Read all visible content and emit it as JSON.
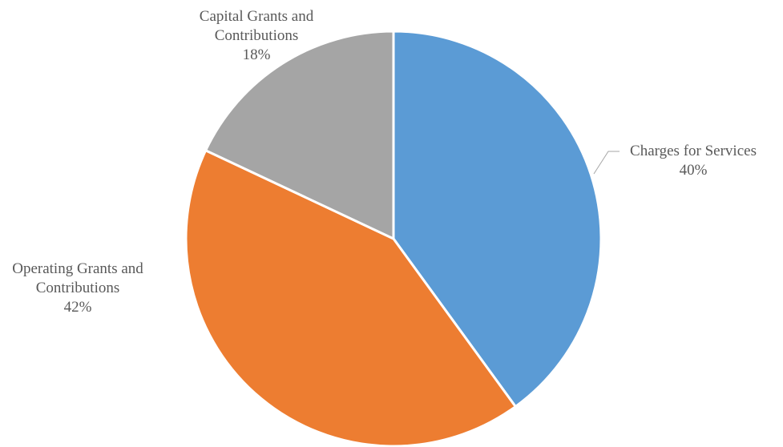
{
  "chart_data": {
    "type": "pie",
    "title": "",
    "slices": [
      {
        "name": "Charges for Services",
        "name_lines": [
          "Charges for Services"
        ],
        "value": 40,
        "value_label": "40%",
        "color": "#5b9bd5"
      },
      {
        "name": "Operating Grants and Contributions",
        "name_lines": [
          "Operating Grants and",
          "Contributions"
        ],
        "value": 42,
        "value_label": "42%",
        "color": "#ed7d31"
      },
      {
        "name": "Capital Grants and Contributions",
        "name_lines": [
          "Capital Grants and",
          "Contributions"
        ],
        "value": 18,
        "value_label": "18%",
        "color": "#a5a5a5"
      }
    ],
    "start_angle": "12 o'clock",
    "direction": "clockwise",
    "legend": "none",
    "data_labels": "outside with category name and percentage"
  }
}
